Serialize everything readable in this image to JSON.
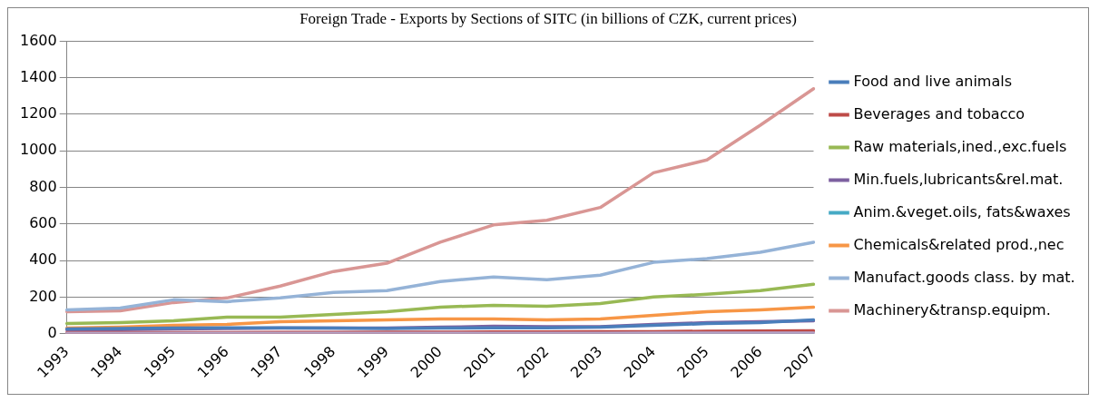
{
  "chart_data": {
    "type": "line",
    "title": "Foreign Trade - Exports by Sections of SITC (in billions of CZK, current prices)",
    "categories": [
      "1993",
      "1994",
      "1995",
      "1996",
      "1997",
      "1998",
      "1999",
      "2000",
      "2001",
      "2002",
      "2003",
      "2004",
      "2005",
      "2006",
      "2007"
    ],
    "series": [
      {
        "name": "Food and live animals",
        "color": "#4a7ebb",
        "values": [
          25,
          28,
          30,
          32,
          32,
          30,
          28,
          30,
          32,
          32,
          35,
          45,
          55,
          60,
          75
        ]
      },
      {
        "name": "Beverages and tobacco",
        "color": "#be4b48",
        "values": [
          5,
          5,
          6,
          6,
          7,
          7,
          8,
          8,
          9,
          9,
          10,
          11,
          13,
          14,
          16
        ]
      },
      {
        "name": "Raw materials,ined.,exc.fuels",
        "color": "#98b954",
        "values": [
          55,
          60,
          70,
          90,
          90,
          105,
          120,
          145,
          155,
          150,
          165,
          200,
          215,
          235,
          270
        ]
      },
      {
        "name": "Min.fuels,lubricants&rel.mat.",
        "color": "#7d60a0",
        "values": [
          20,
          22,
          25,
          28,
          30,
          30,
          30,
          35,
          40,
          38,
          38,
          50,
          60,
          65,
          70
        ]
      },
      {
        "name": "Anim.&veget.oils, fats&waxes",
        "color": "#46aac5",
        "values": [
          null,
          null,
          null,
          null,
          null,
          null,
          null,
          null,
          null,
          null,
          null,
          null,
          null,
          null,
          null
        ]
      },
      {
        "name": "Chemicals&related prod.,nec",
        "color": "#f79646",
        "values": [
          30,
          35,
          45,
          50,
          65,
          70,
          75,
          80,
          80,
          75,
          80,
          100,
          120,
          130,
          145
        ]
      },
      {
        "name": "Manufact.goods class. by mat.",
        "color": "#95b3d7",
        "values": [
          130,
          140,
          185,
          175,
          195,
          225,
          235,
          285,
          310,
          295,
          320,
          390,
          410,
          445,
          500
        ]
      },
      {
        "name": "Machinery&transp.equipm.",
        "color": "#d99694",
        "values": [
          120,
          125,
          170,
          195,
          260,
          340,
          385,
          500,
          595,
          620,
          690,
          880,
          950,
          1140,
          1340
        ]
      },
      {
        "color": "#b3a2c7",
        "values": [
          2,
          2,
          2,
          2,
          2,
          2,
          2,
          2,
          2,
          2,
          2,
          3,
          3,
          3,
          3
        ]
      }
    ],
    "ylim": [
      0,
      1600
    ],
    "yticks": [
      0,
      200,
      400,
      600,
      800,
      1000,
      1200,
      1400,
      1600
    ],
    "grid": "y",
    "legend": "right",
    "marker": "none",
    "line_style": "solid"
  }
}
